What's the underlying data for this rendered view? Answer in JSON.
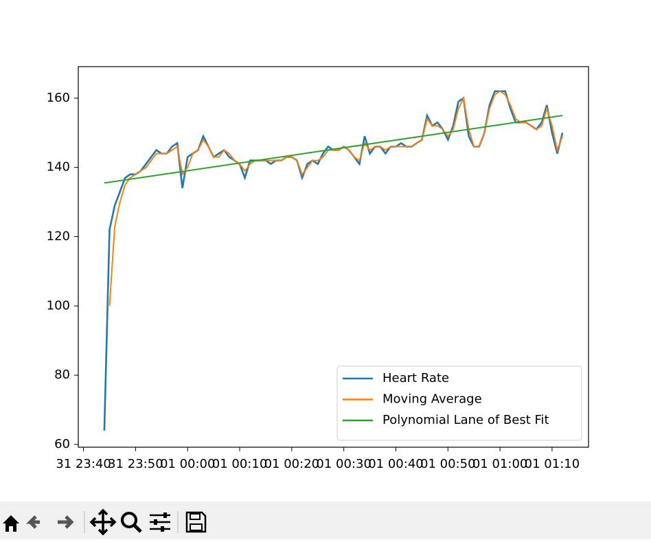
{
  "chart_data": {
    "type": "line",
    "x": [
      "31 23:44",
      "31 23:45",
      "31 23:46",
      "31 23:47",
      "31 23:48",
      "31 23:49",
      "31 23:50",
      "31 23:51",
      "31 23:52",
      "31 23:53",
      "31 23:54",
      "31 23:55",
      "31 23:56",
      "31 23:57",
      "31 23:58",
      "31 23:59",
      "01 00:00",
      "01 00:01",
      "01 00:02",
      "01 00:03",
      "01 00:04",
      "01 00:05",
      "01 00:06",
      "01 00:07",
      "01 00:08",
      "01 00:09",
      "01 00:10",
      "01 00:11",
      "01 00:12",
      "01 00:13",
      "01 00:14",
      "01 00:15",
      "01 00:16",
      "01 00:17",
      "01 00:18",
      "01 00:19",
      "01 00:20",
      "01 00:21",
      "01 00:22",
      "01 00:23",
      "01 00:24",
      "01 00:25",
      "01 00:26",
      "01 00:27",
      "01 00:28",
      "01 00:29",
      "01 00:30",
      "01 00:31",
      "01 00:32",
      "01 00:33",
      "01 00:34",
      "01 00:35",
      "01 00:36",
      "01 00:37",
      "01 00:38",
      "01 00:39",
      "01 00:40",
      "01 00:41",
      "01 00:42",
      "01 00:43",
      "01 00:44",
      "01 00:45",
      "01 00:46",
      "01 00:47",
      "01 00:48",
      "01 00:49",
      "01 00:50",
      "01 00:51",
      "01 00:52",
      "01 00:53",
      "01 00:54",
      "01 00:55",
      "01 00:56",
      "01 00:57",
      "01 00:58",
      "01 00:59",
      "01 01:00",
      "01 01:01",
      "01 01:02",
      "01 01:03",
      "01 01:04",
      "01 01:05",
      "01 01:06",
      "01 01:07",
      "01 01:08",
      "01 01:09",
      "01 01:10",
      "01 01:11",
      "01 01:12"
    ],
    "series": [
      {
        "name": "Heart Rate",
        "color": "#1f77b4",
        "values": [
          64,
          122,
          129,
          133,
          137,
          138,
          138,
          139,
          141,
          143,
          145,
          144,
          144,
          146,
          147,
          134,
          143,
          144,
          145,
          149,
          146,
          143,
          144,
          145,
          143,
          142,
          141,
          137,
          142,
          142,
          142,
          142,
          141,
          142,
          142,
          143,
          143,
          142,
          137,
          141,
          142,
          141,
          144,
          146,
          145,
          145,
          146,
          145,
          143,
          141,
          149,
          144,
          146,
          146,
          144,
          146,
          146,
          147,
          146,
          146,
          147,
          148,
          155,
          152,
          153,
          151,
          148,
          152,
          159,
          160,
          149,
          146,
          146,
          150,
          158,
          162,
          162,
          162,
          157,
          153,
          153,
          153,
          152,
          151,
          153,
          158,
          150,
          144,
          150
        ]
      },
      {
        "name": "Moving Average",
        "color": "#ff7f0e",
        "values": [
          null,
          100,
          123,
          130,
          135,
          137,
          138,
          139,
          140,
          142,
          144,
          144,
          144,
          145,
          146,
          138,
          140,
          144,
          145,
          148,
          146,
          143,
          143,
          145,
          144,
          142,
          141,
          139,
          141,
          142,
          142,
          142,
          142,
          142,
          142,
          143,
          143,
          142,
          138,
          140,
          142,
          142,
          143,
          145,
          145,
          145,
          146,
          145,
          143,
          142,
          147,
          145,
          146,
          146,
          145,
          146,
          146,
          146,
          146,
          146,
          147,
          148,
          154,
          152,
          152,
          151,
          149,
          151,
          157,
          160,
          151,
          146,
          146,
          150,
          157,
          161,
          162,
          161,
          158,
          154,
          153,
          153,
          152,
          151,
          152,
          157,
          152,
          145,
          149
        ]
      },
      {
        "name": "Polynomial Lane of Best Fit",
        "color": "#2ca02c",
        "x": [
          "31 23:44",
          "01 01:12"
        ],
        "values": [
          135.5,
          155
        ]
      }
    ],
    "xlim": [
      "31 23:39",
      "01 01:17"
    ],
    "xticks": [
      "31 23:40",
      "31 23:50",
      "01 00:00",
      "01 00:10",
      "01 00:20",
      "01 00:30",
      "01 00:40",
      "01 00:50",
      "01 01:00",
      "01 01:10"
    ],
    "ylim": [
      59.2,
      169.1
    ],
    "yticks": [
      60,
      80,
      100,
      120,
      140,
      160
    ],
    "legend": "lower right"
  }
}
